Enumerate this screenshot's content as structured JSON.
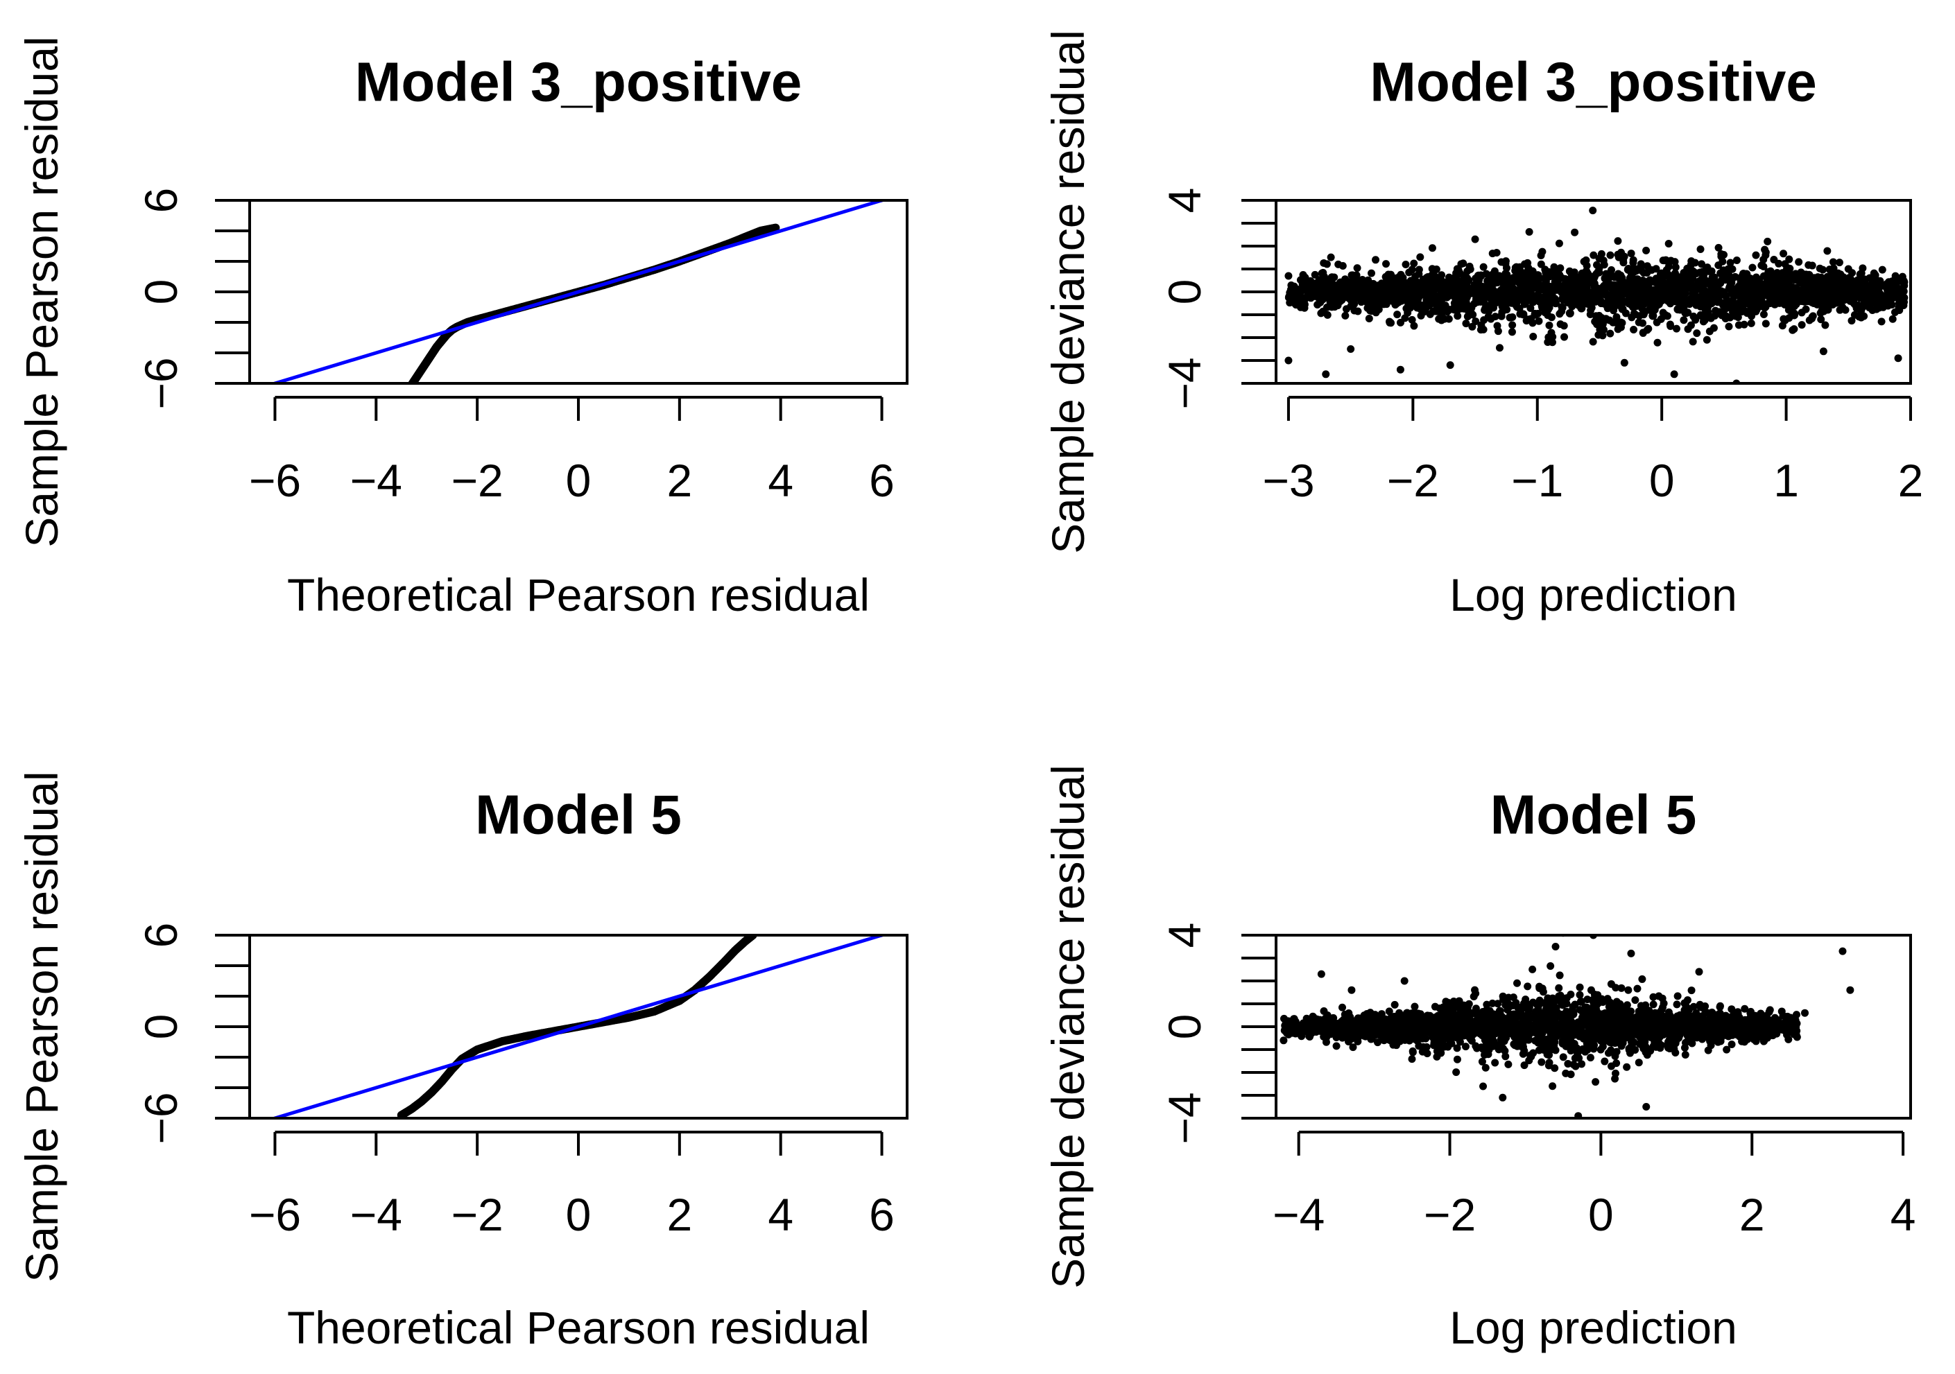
{
  "chart_data": [
    {
      "type": "line",
      "subtype": "qq-plot",
      "title": "Model 3_positive",
      "xlabel": "Theoretical Pearson residual",
      "ylabel": "Sample Pearson residual",
      "xlim": [
        -6.5,
        6.5
      ],
      "ylim": [
        -6,
        6
      ],
      "xticks": [
        -6,
        -4,
        -2,
        0,
        2,
        4,
        6
      ],
      "xtick_labels": [
        "−6",
        "−4",
        "−2",
        "0",
        "2",
        "4",
        "6"
      ],
      "yticks": [
        -6,
        0,
        6
      ],
      "ytick_labels": [
        "−6",
        "0",
        "6"
      ],
      "y_minor_ticks": [
        -6,
        -4,
        -2,
        0,
        2,
        4,
        6
      ],
      "line_color": "#0000ff",
      "point_color": "#000000",
      "reference_line": {
        "x": [
          -6.5,
          6.5
        ],
        "y": [
          -6.5,
          6.5
        ]
      },
      "series": [
        {
          "name": "quantiles",
          "x": [
            -3.3,
            -3.2,
            -3.1,
            -3.0,
            -2.9,
            -2.8,
            -2.7,
            -2.6,
            -2.5,
            -2.4,
            -2.2,
            -2.0,
            -1.5,
            -1.0,
            -0.5,
            0.0,
            0.5,
            1.0,
            1.5,
            2.0,
            2.5,
            3.0,
            3.3,
            3.6,
            3.9
          ],
          "y": [
            -6.1,
            -5.6,
            -5.1,
            -4.6,
            -4.1,
            -3.6,
            -3.2,
            -2.8,
            -2.5,
            -2.3,
            -2.0,
            -1.8,
            -1.35,
            -0.9,
            -0.45,
            0.0,
            0.45,
            0.95,
            1.45,
            2.0,
            2.6,
            3.2,
            3.6,
            4.0,
            4.2
          ]
        }
      ]
    },
    {
      "type": "scatter",
      "title": "Model 3_positive",
      "xlabel": "Log prediction",
      "ylabel": "Sample deviance residual",
      "xlim": [
        -3.1,
        2.0
      ],
      "ylim": [
        -4,
        4
      ],
      "xticks": [
        -3,
        -2,
        -1,
        0,
        1,
        2
      ],
      "xtick_labels": [
        "−3",
        "−2",
        "−1",
        "0",
        "1",
        "2"
      ],
      "yticks": [
        -4,
        0,
        4
      ],
      "ytick_labels": [
        "−4",
        "0",
        "4"
      ],
      "y_minor_ticks": [
        -4,
        -3,
        -2,
        -1,
        0,
        1,
        2,
        3,
        4
      ],
      "point_color": "#000000",
      "point_cloud": {
        "n": 1600,
        "x_range": [
          -3.0,
          1.95
        ],
        "seed": 11,
        "spread": "narrow at extremes, widest near -0.5",
        "profile": [
          [
            -3.0,
            0.9
          ],
          [
            -2.0,
            1.5
          ],
          [
            -1.0,
            2.2
          ],
          [
            -0.5,
            2.5
          ],
          [
            0.5,
            2.3
          ],
          [
            1.0,
            2.0
          ],
          [
            1.95,
            1.0
          ]
        ]
      },
      "series": [
        {
          "name": "outliers",
          "x": [
            -3.0,
            -2.95,
            -2.7,
            -2.6,
            -2.5,
            -2.3,
            -2.1,
            -1.7,
            -1.5,
            -0.7,
            -0.3,
            0.1,
            0.6,
            0.85,
            1.3,
            1.5,
            1.9
          ],
          "y": [
            -3.0,
            -0.5,
            -3.6,
            1.2,
            -2.5,
            1.4,
            -3.4,
            -3.2,
            2.3,
            2.6,
            -3.1,
            -3.6,
            -4.0,
            2.2,
            -2.6,
            1.0,
            -2.9
          ]
        }
      ]
    },
    {
      "type": "line",
      "subtype": "qq-plot",
      "title": "Model 5",
      "xlabel": "Theoretical Pearson residual",
      "ylabel": "Sample Pearson residual",
      "xlim": [
        -6.5,
        6.5
      ],
      "ylim": [
        -6,
        6
      ],
      "xticks": [
        -6,
        -4,
        -2,
        0,
        2,
        4,
        6
      ],
      "xtick_labels": [
        "−6",
        "−4",
        "−2",
        "0",
        "2",
        "4",
        "6"
      ],
      "yticks": [
        -6,
        0,
        6
      ],
      "ytick_labels": [
        "−6",
        "0",
        "6"
      ],
      "y_minor_ticks": [
        -6,
        -4,
        -2,
        0,
        2,
        4,
        6
      ],
      "line_color": "#0000ff",
      "point_color": "#000000",
      "reference_line": {
        "x": [
          -6.5,
          6.5
        ],
        "y": [
          -6.5,
          6.5
        ]
      },
      "series": [
        {
          "name": "quantiles",
          "x": [
            -3.5,
            -3.3,
            -3.1,
            -2.9,
            -2.7,
            -2.5,
            -2.3,
            -2.0,
            -1.5,
            -1.0,
            -0.5,
            0.0,
            0.5,
            1.0,
            1.5,
            2.0,
            2.3,
            2.6,
            2.9,
            3.1,
            3.3,
            3.45
          ],
          "y": [
            -5.8,
            -5.4,
            -4.9,
            -4.3,
            -3.6,
            -2.8,
            -2.1,
            -1.5,
            -0.95,
            -0.6,
            -0.3,
            0.0,
            0.3,
            0.6,
            1.0,
            1.7,
            2.4,
            3.3,
            4.3,
            5.0,
            5.6,
            6.0
          ]
        }
      ]
    },
    {
      "type": "scatter",
      "title": "Model 5",
      "xlabel": "Log prediction",
      "ylabel": "Sample deviance residual",
      "xlim": [
        -4.3,
        4.1
      ],
      "ylim": [
        -4,
        4
      ],
      "xticks": [
        -4,
        -2,
        0,
        2,
        4
      ],
      "xtick_labels": [
        "−4",
        "−2",
        "0",
        "2",
        "4"
      ],
      "yticks": [
        -4,
        0,
        4
      ],
      "ytick_labels": [
        "−4",
        "0",
        "4"
      ],
      "y_minor_ticks": [
        -4,
        -3,
        -2,
        -1,
        0,
        1,
        2,
        3,
        4
      ],
      "point_color": "#000000",
      "point_cloud": {
        "n": 1700,
        "x_range": [
          -4.2,
          2.6
        ],
        "seed": 23,
        "spread": "narrow at -4, widest near -0.5, dense spike at -0.3",
        "profile": [
          [
            -4.2,
            0.4
          ],
          [
            -3.0,
            0.9
          ],
          [
            -2.0,
            1.6
          ],
          [
            -1.0,
            2.2
          ],
          [
            -0.5,
            2.6
          ],
          [
            0.5,
            1.7
          ],
          [
            1.5,
            1.0
          ],
          [
            2.6,
            0.6
          ]
        ]
      },
      "series": [
        {
          "name": "outliers",
          "x": [
            -4.2,
            -3.7,
            -3.3,
            -2.6,
            -1.3,
            -0.6,
            -0.5,
            -0.3,
            -0.1,
            0.4,
            0.6,
            1.3,
            2.7,
            3.2,
            3.3
          ],
          "y": [
            -0.6,
            2.3,
            1.6,
            2.0,
            -3.1,
            3.5,
            4.1,
            -3.9,
            4.0,
            3.2,
            -3.5,
            2.4,
            0.6,
            3.3,
            1.6
          ]
        }
      ]
    }
  ]
}
